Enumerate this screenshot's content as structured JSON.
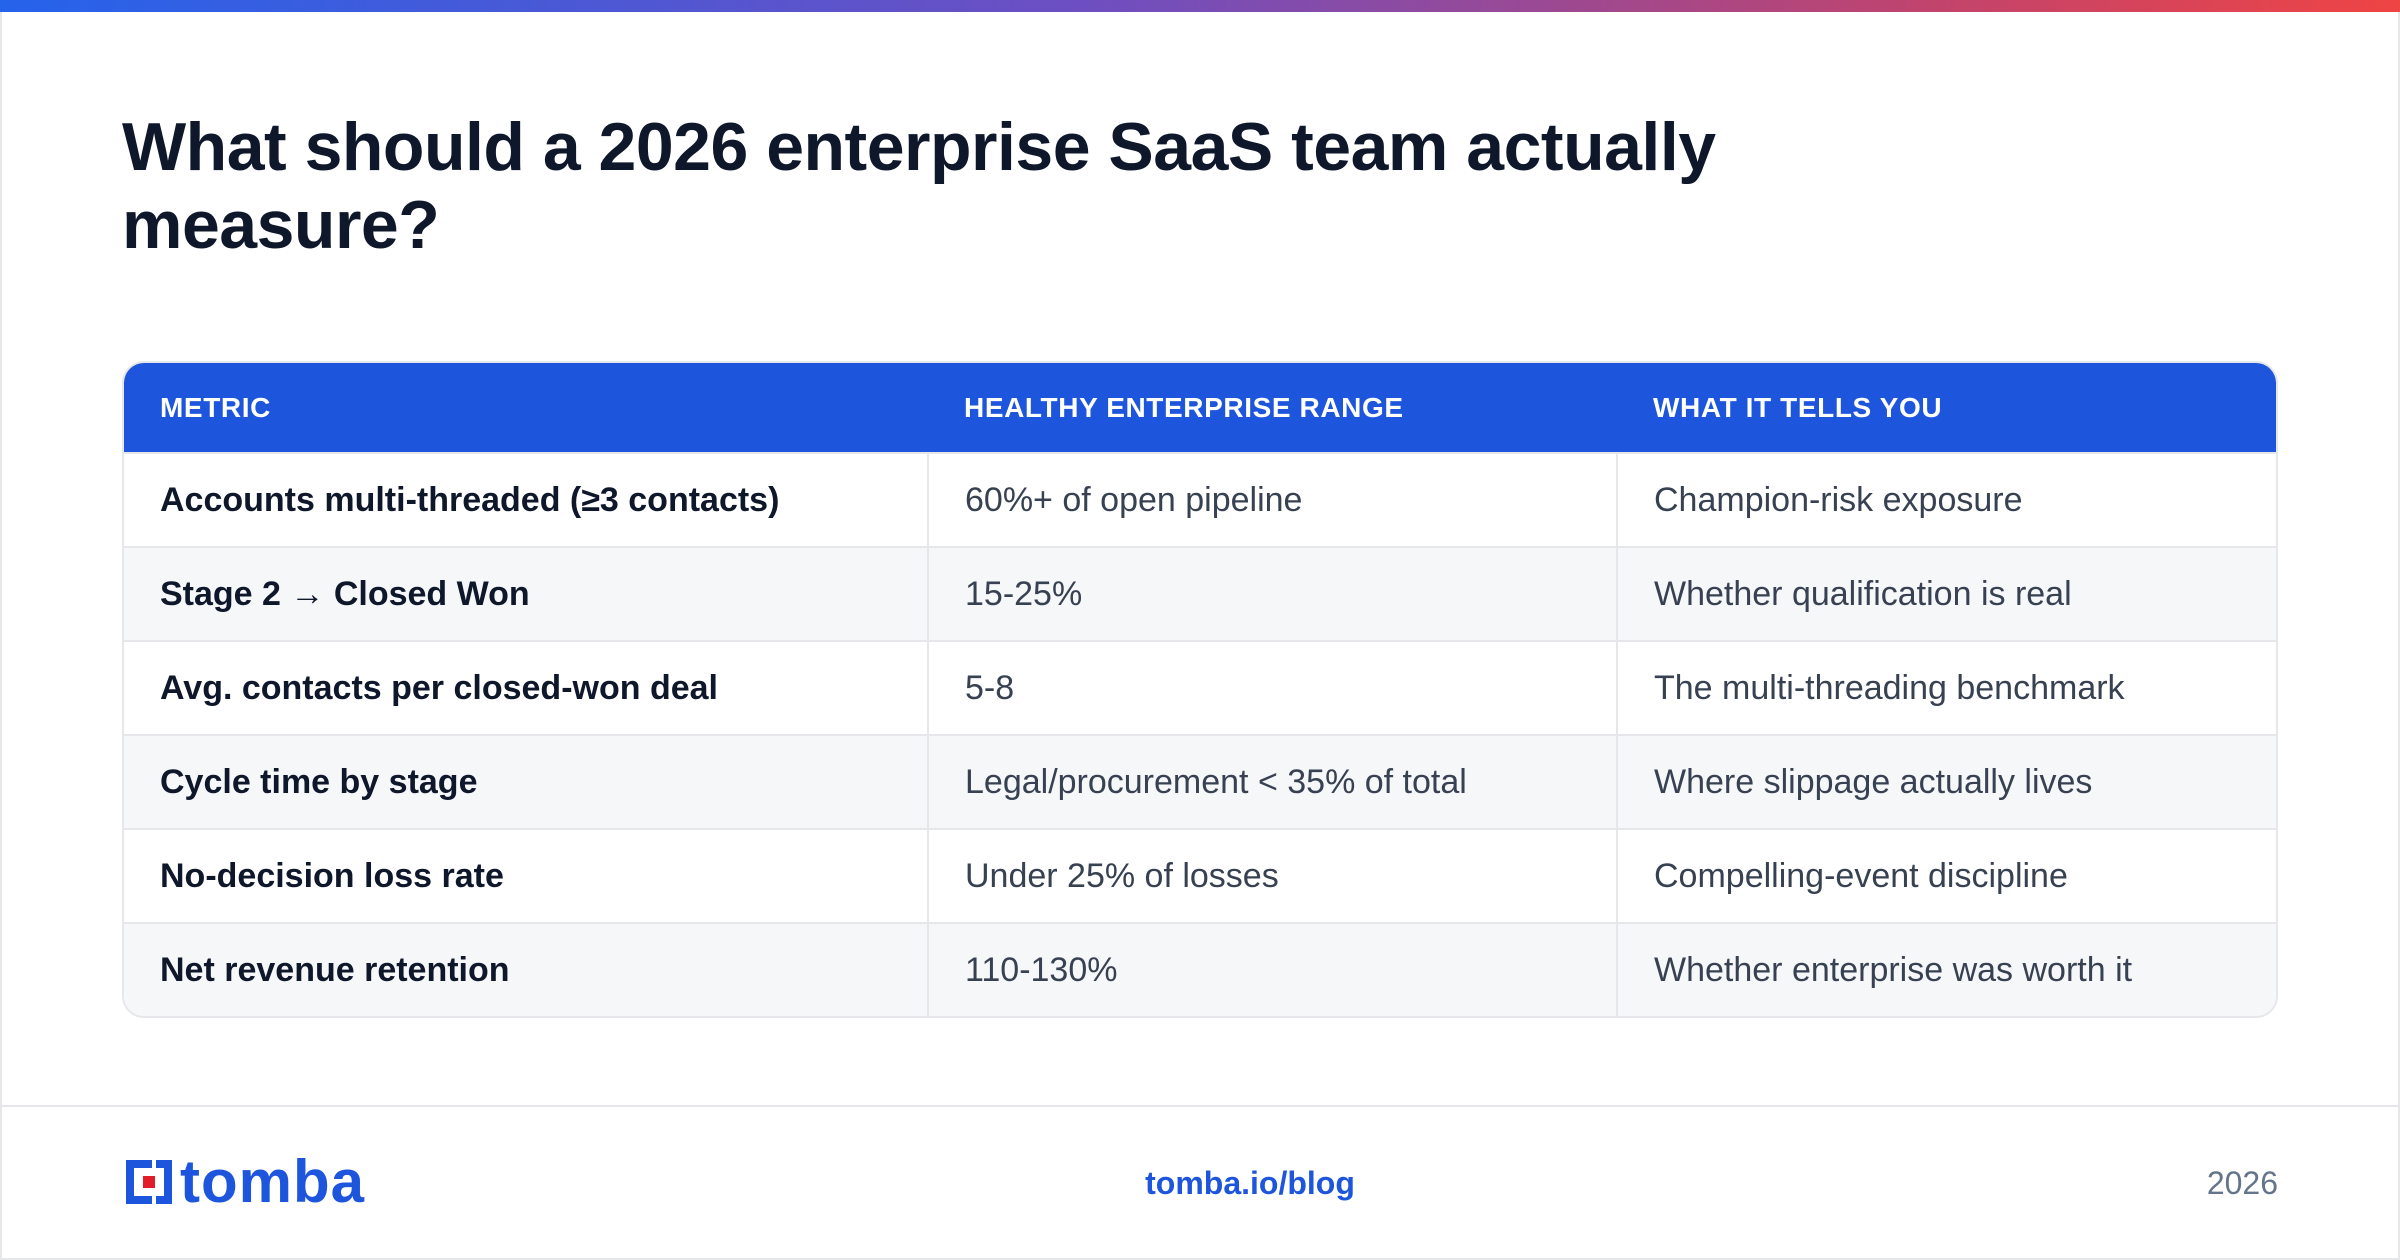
{
  "title": "What should a 2026 enterprise SaaS team actually measure?",
  "table": {
    "headers": [
      "METRIC",
      "HEALTHY ENTERPRISE RANGE",
      "WHAT IT TELLS YOU"
    ],
    "rows": [
      [
        "Accounts multi-threaded (≥3 contacts)",
        "60%+ of open pipeline",
        "Champion-risk exposure"
      ],
      [
        "Stage 2 → Closed Won",
        "15-25%",
        "Whether qualification is real"
      ],
      [
        "Avg. contacts per closed-won deal",
        "5-8",
        "The multi-threading benchmark"
      ],
      [
        "Cycle time by stage",
        "Legal/procurement < 35% of total",
        "Where slippage actually lives"
      ],
      [
        "No-decision loss rate",
        "Under 25% of losses",
        "Compelling-event discipline"
      ],
      [
        "Net revenue retention",
        "110-130%",
        "Whether enterprise was worth it"
      ]
    ]
  },
  "footer": {
    "logo_text": "tomba",
    "logo_icon": "tomba-logo-icon",
    "site": "tomba.io/blog",
    "year": "2026"
  },
  "colors": {
    "accent": "#1d55dc",
    "logo_red": "#e11d2a",
    "gradient_start": "#2563eb",
    "gradient_end": "#ef4444"
  }
}
